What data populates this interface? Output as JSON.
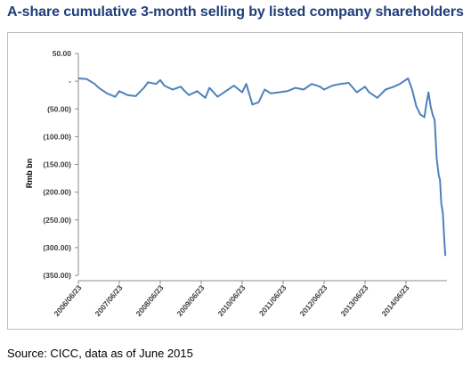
{
  "title": "A-share cumulative 3-month selling by listed company shareholders",
  "source": "Source: CICC, data as of June 2015",
  "chart_data": {
    "type": "line",
    "ylabel": "Rmb bn",
    "ylim": [
      -350,
      50
    ],
    "yticks": [
      50,
      0,
      -50,
      -100,
      -150,
      -200,
      -250,
      -300,
      -350
    ],
    "ytick_labels": [
      "50.00",
      "-",
      "(50.00)",
      "(100.00)",
      "(150.00)",
      "(200.00)",
      "(250.00)",
      "(300.00)",
      "(350.00)"
    ],
    "xtick_labels": [
      "2006/06/23",
      "2007/06/23",
      "2008/06/23",
      "2009/06/23",
      "2010/06/23",
      "2011/06/23",
      "2012/06/23",
      "2013/06/23",
      "2014/06/23"
    ],
    "xlim": [
      2006.5,
      2015.5
    ],
    "grid": false,
    "color": "#4f81bd",
    "series": [
      {
        "x": [
          2006.5,
          2006.7,
          2006.9,
          2007.0,
          2007.2,
          2007.4,
          2007.5,
          2007.7,
          2007.9,
          2008.1,
          2008.2,
          2008.4,
          2008.5,
          2008.6,
          2008.8,
          2009.0,
          2009.1,
          2009.2,
          2009.4,
          2009.6,
          2009.7,
          2009.9,
          2010.1,
          2010.3,
          2010.5,
          2010.6,
          2010.75,
          2010.9,
          2011.05,
          2011.2,
          2011.4,
          2011.6,
          2011.8,
          2012.0,
          2012.2,
          2012.4,
          2012.5,
          2012.7,
          2012.9,
          2013.1,
          2013.3,
          2013.5,
          2013.6,
          2013.8,
          2014.0,
          2014.2,
          2014.35,
          2014.45,
          2014.55,
          2014.65,
          2014.75,
          2014.85,
          2014.95,
          2015.0,
          2015.05,
          2015.1,
          2015.15,
          2015.2,
          2015.25,
          2015.3,
          2015.33,
          2015.36,
          2015.4,
          2015.43,
          2015.46
        ],
        "y": [
          5,
          4,
          -5,
          -12,
          -22,
          -28,
          -18,
          -25,
          -27,
          -12,
          -2,
          -5,
          2,
          -8,
          -15,
          -10,
          -18,
          -25,
          -18,
          -30,
          -12,
          -28,
          -18,
          -8,
          -20,
          -5,
          -42,
          -38,
          -15,
          -22,
          -20,
          -18,
          -12,
          -15,
          -5,
          -10,
          -15,
          -8,
          -5,
          -3,
          -20,
          -10,
          -20,
          -30,
          -15,
          -10,
          -5,
          0,
          5,
          -15,
          -45,
          -60,
          -65,
          -40,
          -20,
          -45,
          -60,
          -70,
          -140,
          -170,
          -178,
          -220,
          -238,
          -280,
          -315
        ]
      }
    ]
  }
}
